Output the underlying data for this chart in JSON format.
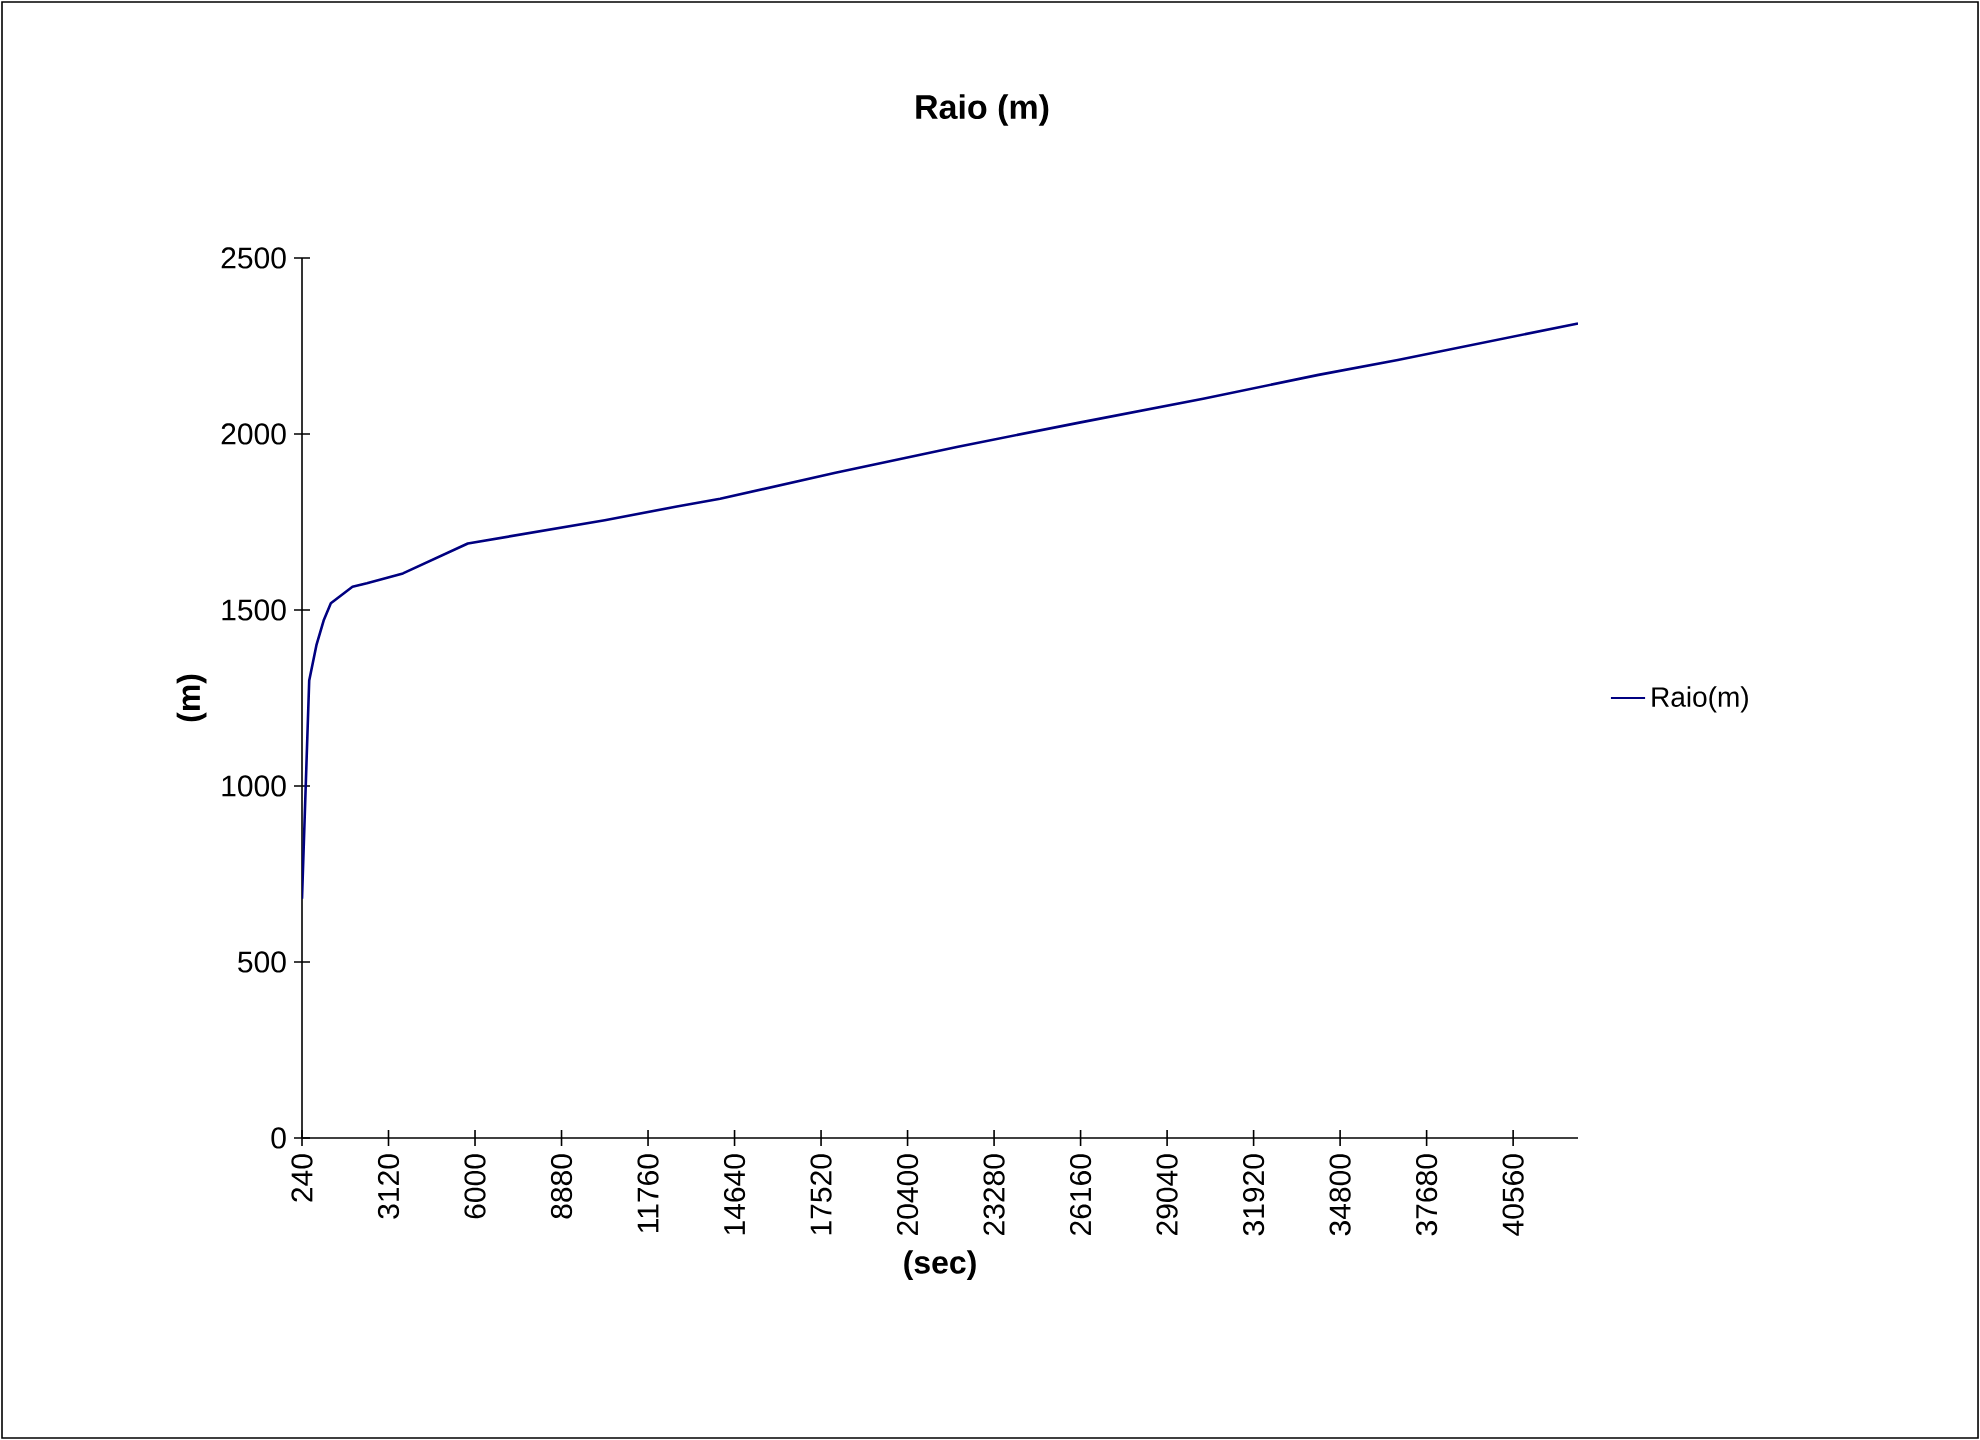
{
  "chart_data": {
    "type": "line",
    "title": "Raio (m)",
    "xlabel": "(sec)",
    "ylabel": "(m)",
    "x": [
      240,
      480,
      720,
      960,
      1200,
      1920,
      2400,
      3600,
      5760,
      10320,
      12720,
      14160,
      18000,
      22080,
      26160,
      30240,
      34080,
      36720,
      42720
    ],
    "series": [
      {
        "name": "Raio(m)",
        "color": "#000080",
        "values": [
          680,
          1300,
          1400,
          1470,
          1519,
          1566,
          1576,
          1604,
          1689,
          1755,
          1794,
          1816,
          1890,
          1964,
          2033,
          2100,
          2168,
          2210,
          2314
        ]
      }
    ],
    "xlim": [
      240,
      42720
    ],
    "xticks": [
      240,
      3120,
      6000,
      8880,
      11760,
      14640,
      17520,
      20400,
      23280,
      26160,
      29040,
      31920,
      34800,
      37680,
      40560
    ],
    "ylim": [
      0,
      2500
    ],
    "yticks": [
      0,
      500,
      1000,
      1500,
      2000,
      2500
    ],
    "grid": false,
    "legend": "right",
    "marker": "none",
    "line_style": "solid"
  }
}
